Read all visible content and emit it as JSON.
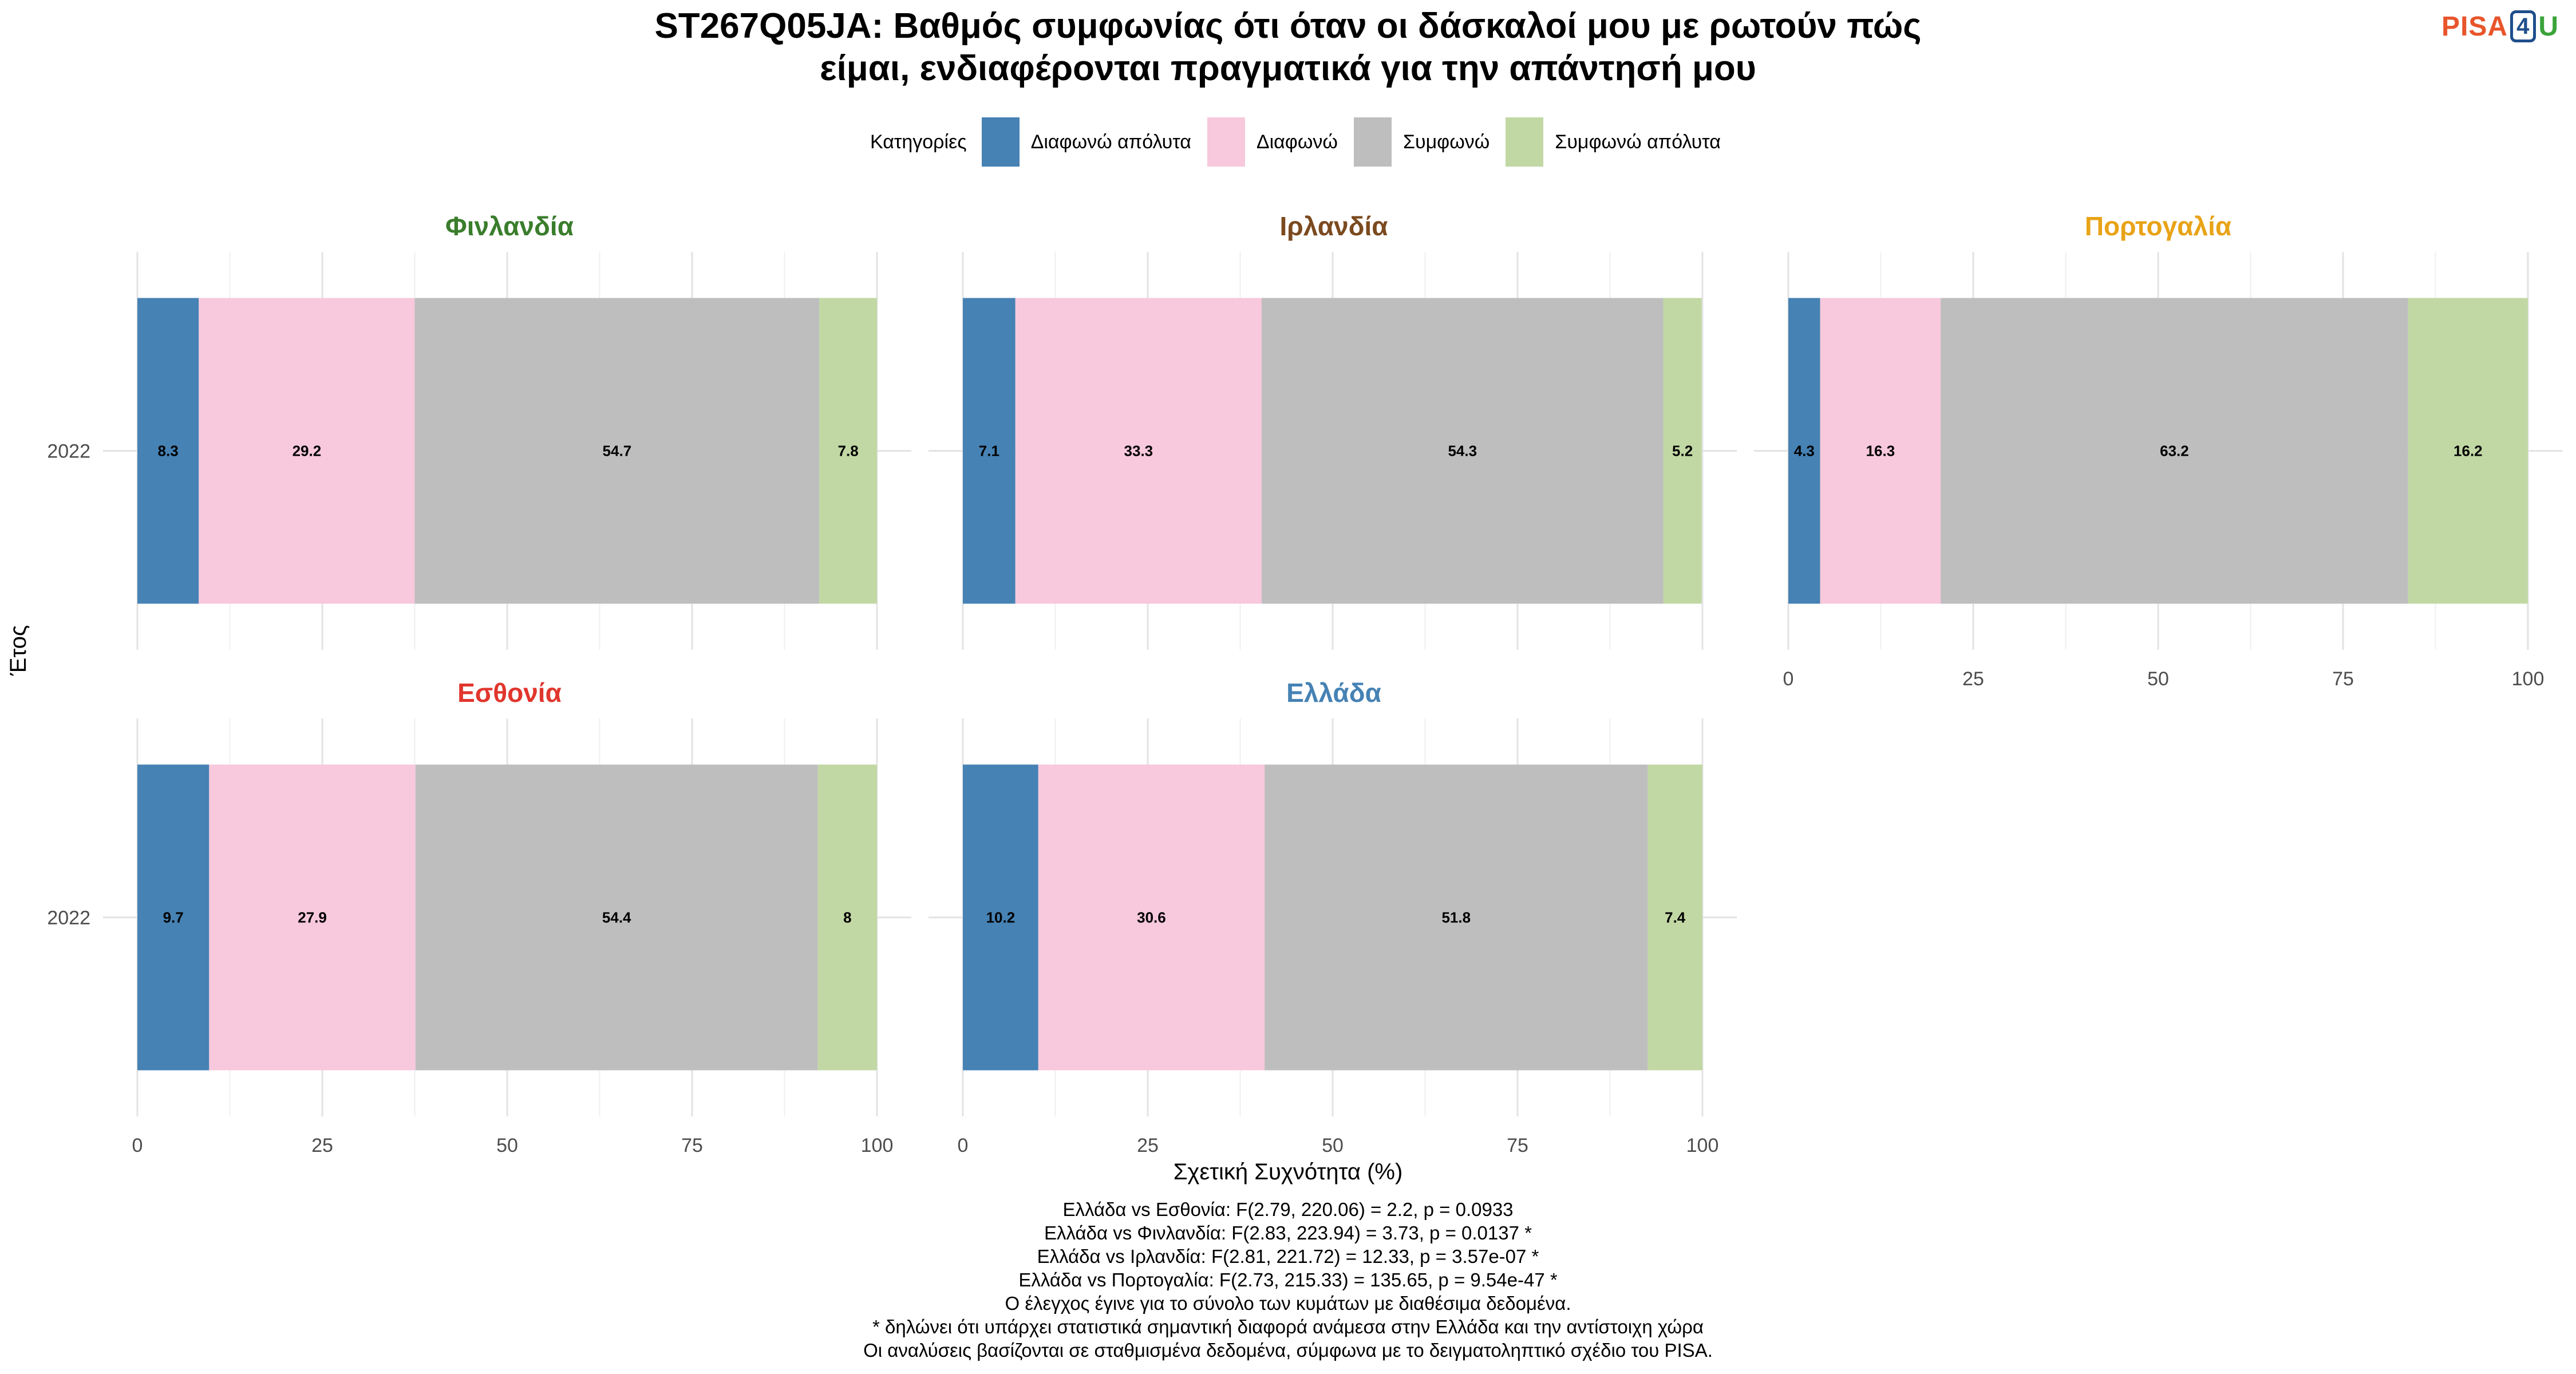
{
  "title_line1": "ST267Q05JA: Βαθμός συμφωνίας ότι όταν οι δάσκαλοί μου με ρωτούν πώς",
  "title_line2": "είμαι, ενδιαφέρονται πραγματικά για την απάντησή μου",
  "logo": {
    "part1": "PISA",
    "part2": "4",
    "part3": "U"
  },
  "legend": {
    "title": "Κατηγορίες",
    "items": [
      {
        "label": "Διαφωνώ απόλυτα",
        "color": "#4682b4"
      },
      {
        "label": "Διαφωνώ",
        "color": "#f8c8dc"
      },
      {
        "label": "Συμφωνώ",
        "color": "#bebebe"
      },
      {
        "label": "Συμφωνώ απόλυτα",
        "color": "#c1d8a4"
      }
    ]
  },
  "y_axis_label": "Έτος",
  "x_axis_label": "Σχετική Συχνότητα (%)",
  "chart_data": {
    "type": "bar",
    "orientation": "horizontal",
    "stacked": true,
    "categories": [
      "Διαφωνώ απόλυτα",
      "Διαφωνώ",
      "Συμφωνώ",
      "Συμφωνώ απόλυτα"
    ],
    "xlim": [
      0,
      100
    ],
    "x_ticks": [
      0,
      25,
      50,
      75,
      100
    ],
    "grid": true,
    "legend_position": "top",
    "facets": [
      {
        "name": "Φινλανδία",
        "title_color": "#3a7d2c",
        "year": "2022",
        "values": [
          8.3,
          29.2,
          54.7,
          7.8
        ],
        "labels": [
          "8.3",
          "29.2",
          "54.7",
          "7.8"
        ],
        "show_x_axis": false
      },
      {
        "name": "Ιρλανδία",
        "title_color": "#7b4a1f",
        "year": "2022",
        "values": [
          7.1,
          33.3,
          54.3,
          5.2
        ],
        "labels": [
          "7.1",
          "33.3",
          "54.3",
          "5.2"
        ],
        "show_x_axis": false
      },
      {
        "name": "Πορτογαλία",
        "title_color": "#e8a317",
        "year": "2022",
        "values": [
          4.3,
          16.3,
          63.2,
          16.2
        ],
        "labels": [
          "4.3",
          "16.3",
          "63.2",
          "16.2"
        ],
        "show_x_axis": true
      },
      {
        "name": "Εσθονία",
        "title_color": "#e0362c",
        "year": "2022",
        "values": [
          9.7,
          27.9,
          54.4,
          8.0
        ],
        "labels": [
          "9.7",
          "27.9",
          "54.4",
          "8"
        ],
        "show_x_axis": true
      },
      {
        "name": "Ελλάδα",
        "title_color": "#4682b4",
        "year": "2022",
        "values": [
          10.2,
          30.6,
          51.8,
          7.4
        ],
        "labels": [
          "10.2",
          "30.6",
          "51.8",
          "7.4"
        ],
        "show_x_axis": true
      }
    ]
  },
  "notes": [
    "Ελλάδα vs Εσθονία: F(2.79, 220.06) = 2.2, p = 0.0933",
    "Ελλάδα vs Φινλανδία: F(2.83, 223.94) = 3.73, p = 0.0137 *",
    "Ελλάδα vs Ιρλανδία: F(2.81, 221.72) = 12.33, p = 3.57e-07 *",
    "Ελλάδα vs Πορτογαλία: F(2.73, 215.33) = 135.65, p = 9.54e-47 *",
    "Ο έλεγχος έγινε για το σύνολο των κυμάτων με διαθέσιμα δεδομένα.",
    "* δηλώνει ότι υπάρχει στατιστικά σημαντική διαφορά ανάμεσα στην Ελλάδα και την αντίστοιχη χώρα",
    "Οι αναλύσεις βασίζονται σε σταθμισμένα δεδομένα, σύμφωνα με το δειγματοληπτικό σχέδιο του PISA."
  ]
}
